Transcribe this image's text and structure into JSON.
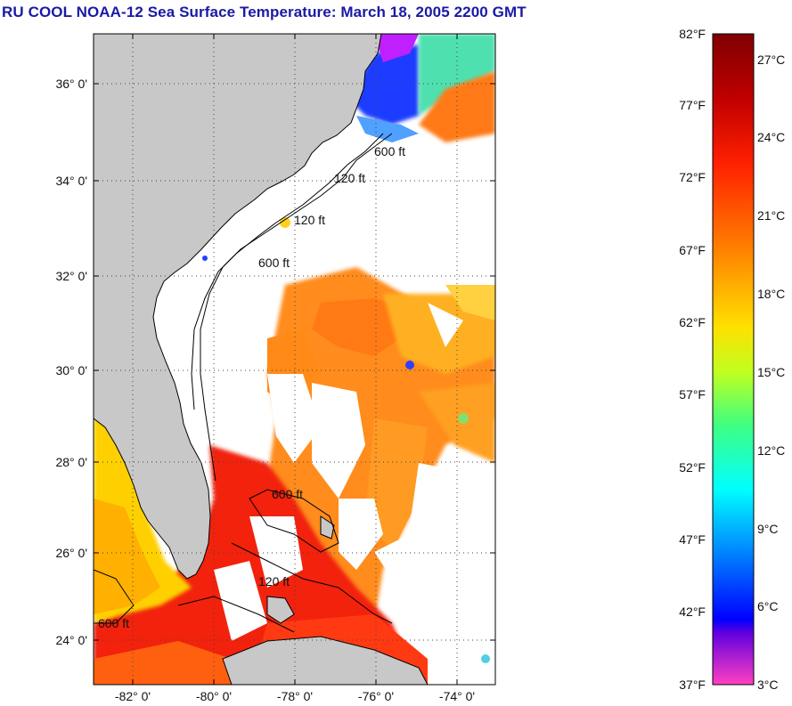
{
  "title": "RU COOL  NOAA-12  Sea Surface Temperature:  March 18, 2005 2200 GMT",
  "map": {
    "lat_labels": [
      "36° 0'",
      "34° 0'",
      "32° 0'",
      "30° 0'",
      "28° 0'",
      "26° 0'",
      "24° 0'"
    ],
    "lon_labels": [
      "-82° 0'",
      "-80° 0'",
      "-78° 0'",
      "-76° 0'",
      "-74° 0'"
    ],
    "isobath_labels": [
      "120 ft",
      "600 ft",
      "120 ft",
      "600 ft",
      "600 ft",
      "120 ft",
      "600 ft"
    ],
    "colors": {
      "land": "#c8c8c8",
      "cloud": "#ffffff",
      "grid": "#555555"
    }
  },
  "colorbar": {
    "fahrenheit_labels": [
      "82°F",
      "77°F",
      "72°F",
      "67°F",
      "62°F",
      "57°F",
      "52°F",
      "47°F",
      "42°F",
      "37°F"
    ],
    "celsius_labels": [
      "27°C",
      "24°C",
      "21°C",
      "18°C",
      "15°C",
      "12°C",
      "9°C",
      "6°C",
      "3°C"
    ],
    "range_f": [
      37,
      82
    ],
    "range_c": [
      3,
      27
    ],
    "gradient": [
      "#800000",
      "#ff0000",
      "#ff8000",
      "#ffff00",
      "#80ff40",
      "#00ffff",
      "#0060ff",
      "#0000c0",
      "#8000ff",
      "#ff40c0"
    ]
  }
}
